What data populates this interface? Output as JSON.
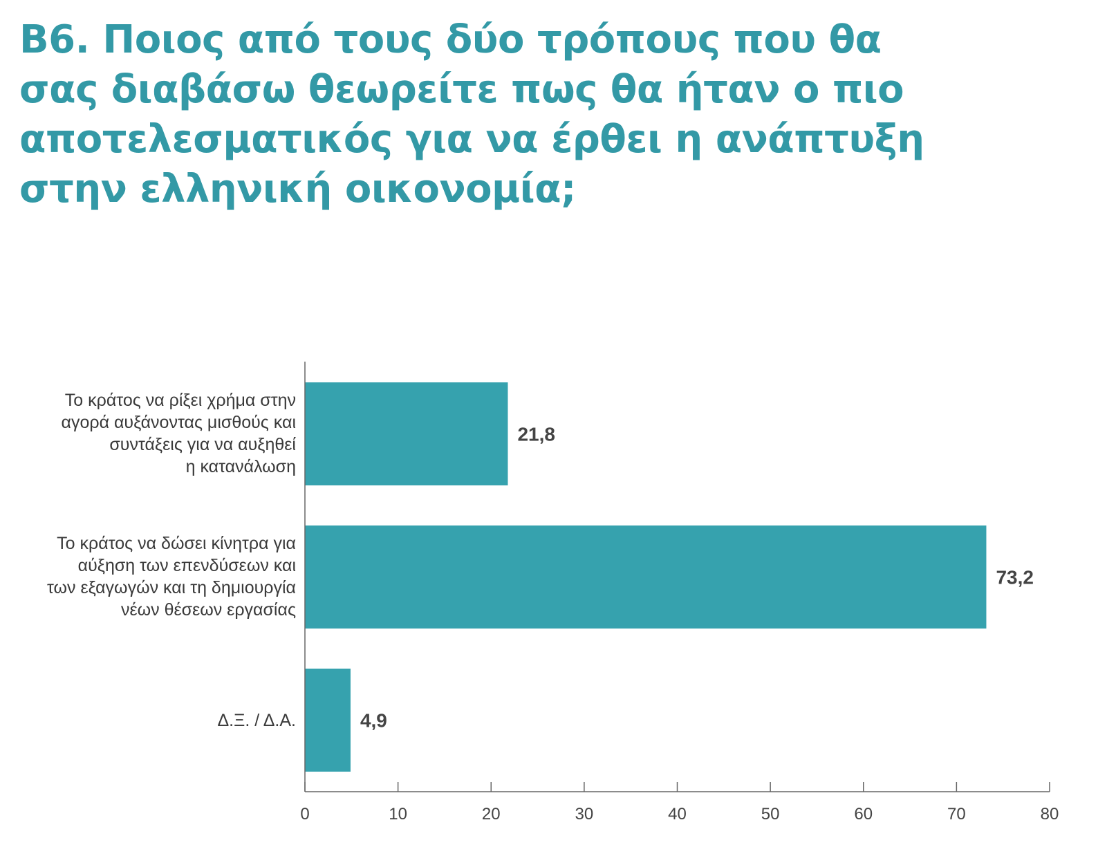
{
  "title_lines": [
    "Β6. Ποιος από τους δύο τρόπους που θα",
    "σας διαβάσω θεωρείτε πως θα ήταν ο πιο",
    "αποτελεσματικός για να έρθει η ανάπτυξη",
    "στην ελληνική οικονομία;"
  ],
  "colors": {
    "title": "#3399a6",
    "bar": "#36a2ae",
    "axis": "#666666",
    "text": "#3a3a3a"
  },
  "chart_data": {
    "type": "bar",
    "orientation": "horizontal",
    "title": "Β6. Ποιος από τους δύο τρόπους που θα σας διαβάσω θεωρείτε πως θα ήταν ο πιο αποτελεσματικός για να έρθει η ανάπτυξη στην ελληνική οικονομία;",
    "categories": [
      [
        "Το κράτος να ρίξει χρήμα στην",
        "αγορά αυξάνοντας μισθούς και",
        "συντάξεις για να αυξηθεί",
        "η κατανάλωση"
      ],
      [
        "Το κράτος να δώσει κίνητρα για",
        "αύξηση των επενδύσεων και",
        "των εξαγωγών και τη δημιουργία",
        "νέων θέσεων εργασίας"
      ],
      [
        "Δ.Ξ. / Δ.Α."
      ]
    ],
    "values": [
      21.8,
      73.2,
      4.9
    ],
    "value_labels": [
      "21,8",
      "73,2",
      "4,9"
    ],
    "xlim": [
      0,
      80
    ],
    "xticks": [
      0,
      10,
      20,
      30,
      40,
      50,
      60,
      70,
      80
    ],
    "grid": false,
    "legend": "none"
  }
}
